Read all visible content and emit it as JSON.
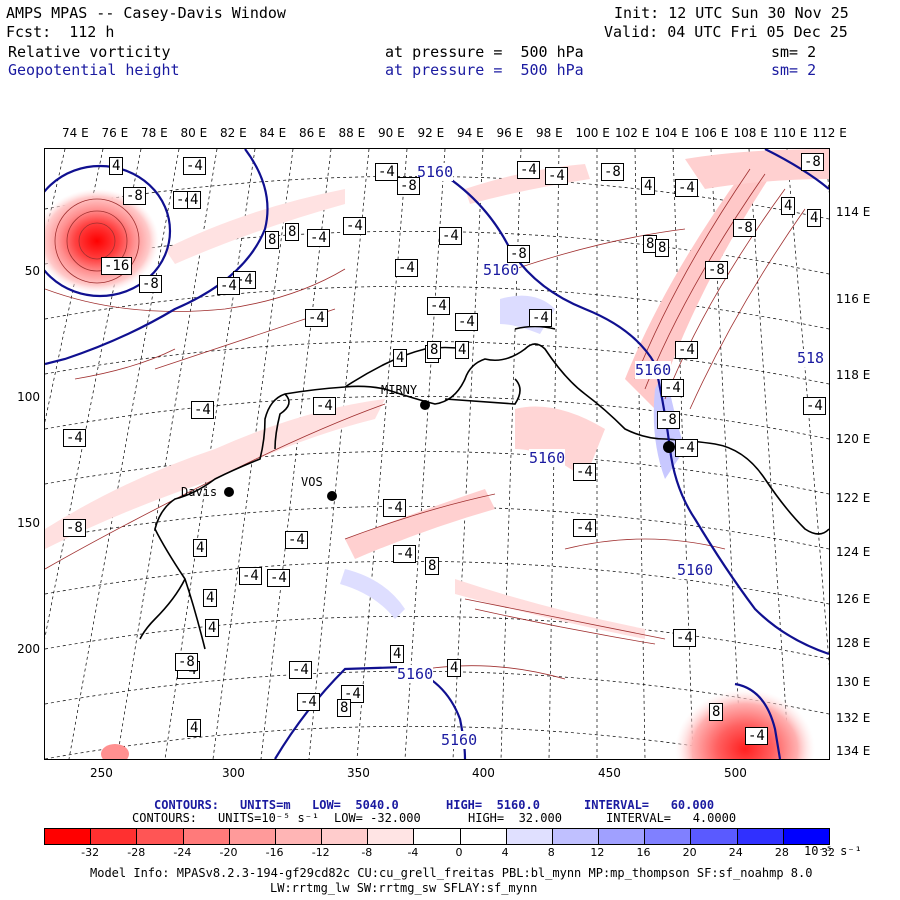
{
  "header": {
    "title": "AMPS MPAS -- Casey-Davis Window",
    "fcst": "Fcst:  112 h",
    "init": "Init: 12 UTC Sun 30 Nov 25",
    "valid": "Valid: 04 UTC Fri 05 Dec 25",
    "field1": {
      "name": "Relative vorticity",
      "pressure": "at pressure =  500 hPa",
      "sm": "sm= 2"
    },
    "field2": {
      "name": "Geopotential height",
      "pressure": "at pressure =  500 hPa",
      "sm": "sm= 2"
    }
  },
  "axes": {
    "lon_top": [
      "74 E",
      "76 E",
      "78 E",
      "80 E",
      "82 E",
      "84 E",
      "86 E",
      "88 E",
      "90 E",
      "92 E",
      "94 E",
      "96 E",
      "98 E",
      "100 E",
      "102 E",
      "104 E",
      "106 E",
      "108 E",
      "110 E",
      "112 E"
    ],
    "lat_right": [
      "114 E",
      "116 E",
      "118 E",
      "120 E",
      "122 E",
      "124 E",
      "126 E",
      "128 E",
      "130 E",
      "132 E",
      "134 E"
    ],
    "y_ticks": [
      "50",
      "100",
      "150",
      "200"
    ],
    "x_ticks": [
      "250",
      "300",
      "350",
      "400",
      "450",
      "500"
    ]
  },
  "places": {
    "mirny": "MIRNY",
    "davis": "Davis",
    "vostok": "VOS"
  },
  "contour_labels": {
    "height": [
      "5160",
      "5160",
      "5160",
      "5160",
      "5160",
      "5160",
      "5160",
      "518"
    ],
    "vort_boxes": [
      "4",
      "-8",
      "-4",
      "-4",
      "8",
      "-4",
      "-4",
      "-4",
      "-4",
      "-8",
      "-4",
      "-4",
      "8",
      "-4",
      "-8",
      "-4",
      "-4",
      "-4",
      "8",
      "4",
      "-4",
      "-16",
      "-8",
      "4",
      "-4",
      "8",
      "-4",
      "-4",
      "-8",
      "-4",
      "8",
      "-4",
      "-8",
      "-8",
      "-4",
      "4",
      "-4",
      "4",
      "-8",
      "4",
      "-4",
      "-4",
      "-8",
      "4",
      "8",
      "4",
      "-4",
      "-8",
      "-4",
      "-4",
      "-4",
      "-4",
      "8",
      "-4",
      "-4",
      "-4",
      "4",
      "4",
      "-4",
      "4",
      "-8",
      "-4",
      "-4",
      "-4",
      "8",
      "4",
      "4",
      "-4",
      "8",
      "-4"
    ]
  },
  "legend": {
    "height": {
      "label": "CONTOURS:",
      "units": "UNITS=m",
      "low": "LOW=  5040.0",
      "high": "HIGH=  5160.0",
      "interval": "INTERVAL=   60.000"
    },
    "vort": {
      "label": "CONTOURS:",
      "units": "UNITS=10⁻⁵ s⁻¹",
      "low": "LOW= -32.000",
      "high": "HIGH=  32.000",
      "interval": "INTERVAL=   4.0000"
    },
    "colorbar_labels": [
      "-32",
      "-28",
      "-24",
      "-20",
      "-16",
      "-12",
      "-8",
      "-4",
      "0",
      "4",
      "8",
      "12",
      "16",
      "20",
      "24",
      "28",
      "32"
    ],
    "colorbar_unit": "10⁻⁵ s⁻¹",
    "colors": [
      "#ff0000",
      "#ff3030",
      "#ff5555",
      "#ff7a7a",
      "#ff9a9a",
      "#ffb5b5",
      "#ffcccc",
      "#ffe4e4",
      "#ffffff",
      "#ffffff",
      "#e0e0ff",
      "#c0c0ff",
      "#a0a0ff",
      "#8080ff",
      "#5a5aff",
      "#3030ff",
      "#0000ff"
    ]
  },
  "footer": {
    "line1": "Model Info: MPASv8.2.3-194-gf29cd82c CU:cu_grell_freitas PBL:bl_mynn MP:mp_thompson SF:sf_noahmp 8.0",
    "line2": "LW:rrtmg_lw SW:rrtmg_sw SFLAY:sf_mynn"
  }
}
